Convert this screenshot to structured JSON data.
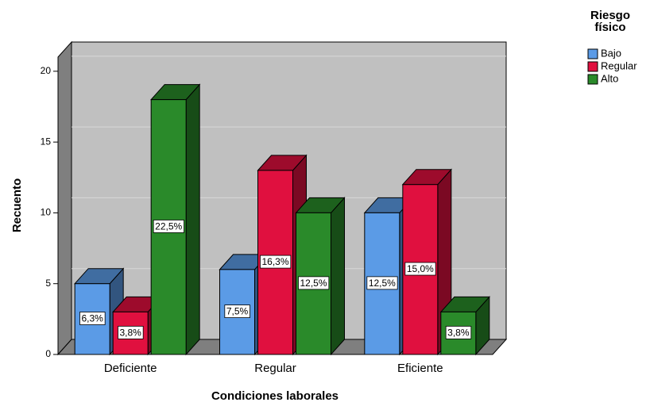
{
  "chart_data": {
    "type": "bar3d",
    "x_label": "Condiciones laborales",
    "y_label": "Recuento",
    "legend_title": "Riesgo físico",
    "categories": [
      "Deficiente",
      "Regular",
      "Eficiente"
    ],
    "series": [
      {
        "name": "Bajo",
        "color": "#5b9be6",
        "values": [
          5,
          6,
          10
        ],
        "percents": [
          6.3,
          7.5,
          12.5
        ],
        "percent_labels": [
          "6,3%",
          "7,5%",
          "12,5%"
        ]
      },
      {
        "name": "Regular",
        "color": "#e0103f",
        "values": [
          3,
          13,
          12
        ],
        "percents": [
          3.8,
          16.3,
          15.0
        ],
        "percent_labels": [
          "3,8%",
          "16,3%",
          "15,0%"
        ]
      },
      {
        "name": "Alto",
        "color": "#2a8a2a",
        "values": [
          18,
          10,
          3
        ],
        "percents": [
          22.5,
          12.5,
          3.8
        ],
        "percent_labels": [
          "22,5%",
          "12,5%",
          "3,8%"
        ]
      }
    ],
    "ylim": [
      0,
      21
    ],
    "yticks": [
      0,
      5,
      10,
      15,
      20
    ],
    "grid": true,
    "legend": "right"
  }
}
